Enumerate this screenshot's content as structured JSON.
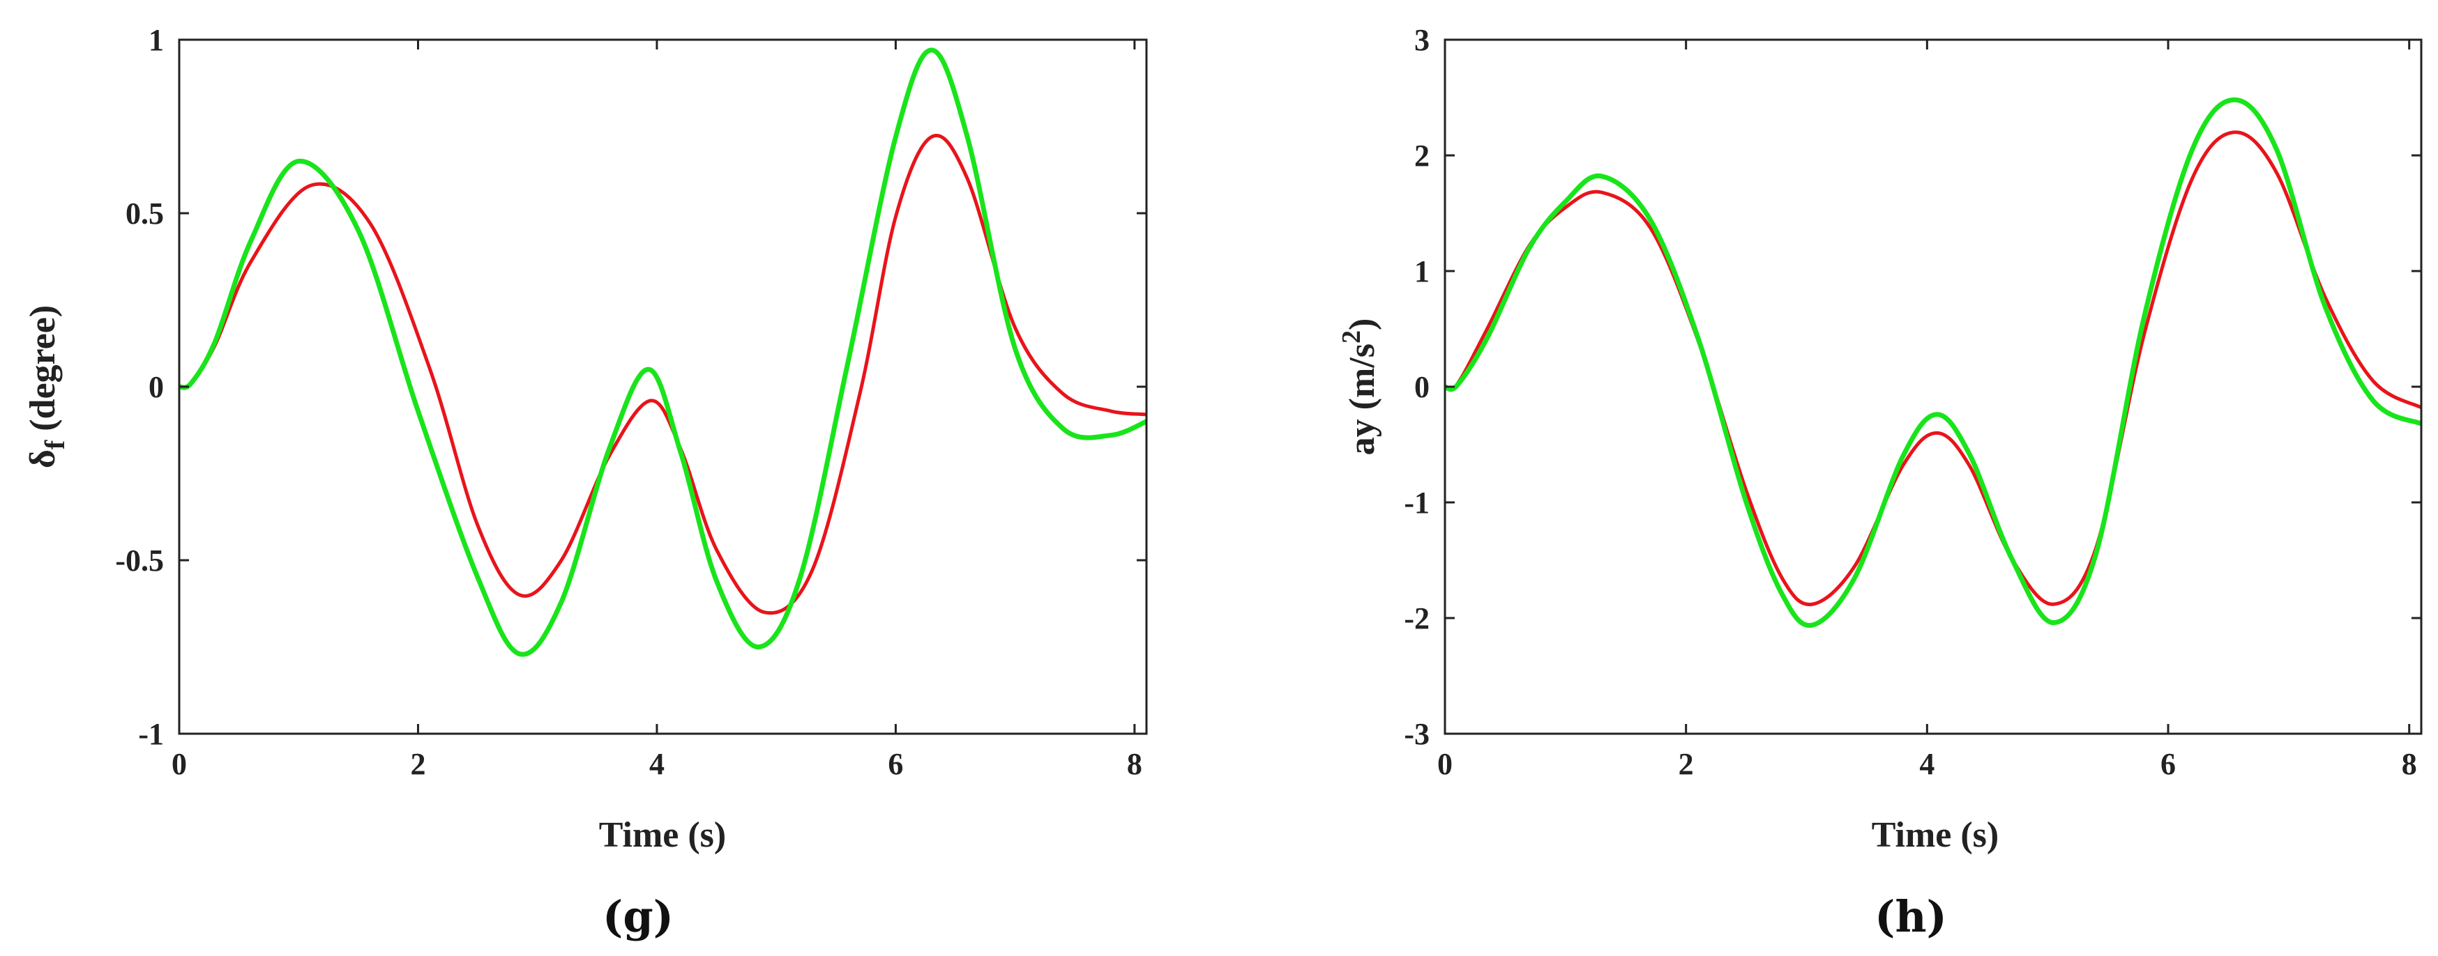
{
  "colors": {
    "red": "#e8141b",
    "green": "#19e41b",
    "black": "#000000"
  },
  "chart_data": [
    {
      "type": "line",
      "panel_label": "(g)",
      "xlabel": "Time (s)",
      "ylabel_main": "δ",
      "ylabel_sub": "f",
      "ylabel_rest": " (degree)",
      "xlim": [
        0,
        8.1
      ],
      "ylim": [
        -1,
        1
      ],
      "xticks": [
        0,
        2,
        4,
        6,
        8
      ],
      "xtick_labels": [
        "0",
        "2",
        "4",
        "6",
        "8"
      ],
      "yticks": [
        -1,
        -0.5,
        0,
        0.5,
        1
      ],
      "ytick_labels": [
        "-1",
        "-0.5",
        "0",
        "0.5",
        "1"
      ],
      "series": [
        {
          "color": "black",
          "width": 5,
          "dashed": true,
          "x": [
            0,
            0.1,
            0.3,
            0.6,
            1.0,
            1.5,
            2.0,
            2.5,
            2.85,
            3.2,
            3.6,
            3.93,
            4.2,
            4.5,
            4.85,
            5.2,
            5.6,
            6.0,
            6.3,
            6.6,
            7.0,
            7.4,
            7.8,
            8.1
          ],
          "y": [
            0,
            0.01,
            0.13,
            0.42,
            0.65,
            0.45,
            -0.07,
            -0.55,
            -0.77,
            -0.62,
            -0.18,
            0.05,
            -0.19,
            -0.56,
            -0.75,
            -0.55,
            0.07,
            0.72,
            0.97,
            0.72,
            0.11,
            -0.12,
            -0.14,
            -0.1
          ]
        },
        {
          "color": "red",
          "width": 5,
          "dashed": false,
          "x": [
            0,
            0.1,
            0.3,
            0.6,
            1.1,
            1.6,
            2.1,
            2.5,
            2.85,
            3.2,
            3.6,
            3.95,
            4.2,
            4.5,
            4.9,
            5.3,
            5.7,
            6.0,
            6.3,
            6.6,
            7.0,
            7.4,
            7.8,
            8.1
          ],
          "y": [
            0,
            0.01,
            0.12,
            0.36,
            0.58,
            0.47,
            0.05,
            -0.4,
            -0.6,
            -0.5,
            -0.2,
            -0.04,
            -0.18,
            -0.47,
            -0.65,
            -0.53,
            -0.02,
            0.49,
            0.72,
            0.6,
            0.17,
            -0.02,
            -0.07,
            -0.08
          ]
        },
        {
          "color": "green",
          "width": 7,
          "dashed": false,
          "x": [
            0,
            0.1,
            0.3,
            0.6,
            1.0,
            1.5,
            2.0,
            2.5,
            2.85,
            3.2,
            3.6,
            3.93,
            4.2,
            4.5,
            4.85,
            5.2,
            5.6,
            6.0,
            6.3,
            6.6,
            7.0,
            7.4,
            7.8,
            8.1
          ],
          "y": [
            0,
            0.01,
            0.13,
            0.42,
            0.65,
            0.45,
            -0.07,
            -0.55,
            -0.77,
            -0.62,
            -0.18,
            0.05,
            -0.19,
            -0.56,
            -0.75,
            -0.55,
            0.07,
            0.72,
            0.97,
            0.72,
            0.11,
            -0.12,
            -0.14,
            -0.1
          ]
        }
      ]
    },
    {
      "type": "line",
      "panel_label": "(h)",
      "xlabel": "Time (s)",
      "ylabel_main": "ay (m/s",
      "ylabel_sup": "2",
      "ylabel_rest": ")",
      "xlim": [
        0,
        8.1
      ],
      "ylim": [
        -3,
        3
      ],
      "xticks": [
        0,
        2,
        4,
        6,
        8
      ],
      "xtick_labels": [
        "0",
        "2",
        "4",
        "6",
        "8"
      ],
      "yticks": [
        -3,
        -2,
        -1,
        0,
        1,
        2,
        3
      ],
      "ytick_labels": [
        "-3",
        "-2",
        "-1",
        "0",
        "1",
        "2",
        "3"
      ],
      "series": [
        {
          "color": "black",
          "width": 5,
          "dashed": true,
          "x": [
            0,
            0.1,
            0.35,
            0.7,
            1.0,
            1.3,
            1.7,
            2.1,
            2.5,
            2.8,
            3.05,
            3.4,
            3.8,
            4.08,
            4.35,
            4.7,
            5.05,
            5.4,
            5.8,
            6.2,
            6.55,
            6.9,
            7.3,
            7.7,
            8.1
          ],
          "y": [
            0,
            0.01,
            0.42,
            1.2,
            1.6,
            1.82,
            1.45,
            0.42,
            -1.0,
            -1.8,
            -2.06,
            -1.65,
            -0.6,
            -0.24,
            -0.58,
            -1.48,
            -2.04,
            -1.45,
            0.6,
            2.05,
            2.48,
            2.05,
            0.7,
            -0.12,
            -0.32
          ]
        },
        {
          "color": "red",
          "width": 5,
          "dashed": false,
          "x": [
            0,
            0.1,
            0.35,
            0.7,
            1.0,
            1.3,
            1.7,
            2.1,
            2.5,
            2.8,
            3.05,
            3.4,
            3.8,
            4.08,
            4.35,
            4.7,
            5.05,
            5.4,
            5.8,
            6.2,
            6.55,
            6.9,
            7.3,
            7.7,
            8.1
          ],
          "y": [
            0,
            0.02,
            0.5,
            1.22,
            1.55,
            1.68,
            1.38,
            0.4,
            -0.9,
            -1.66,
            -1.88,
            -1.55,
            -0.68,
            -0.4,
            -0.68,
            -1.48,
            -1.88,
            -1.4,
            0.45,
            1.8,
            2.2,
            1.85,
            0.78,
            0.05,
            -0.18
          ]
        },
        {
          "color": "green",
          "width": 7,
          "dashed": false,
          "x": [
            0,
            0.1,
            0.35,
            0.7,
            1.0,
            1.3,
            1.7,
            2.1,
            2.5,
            2.8,
            3.05,
            3.4,
            3.8,
            4.08,
            4.35,
            4.7,
            5.05,
            5.4,
            5.8,
            6.2,
            6.55,
            6.9,
            7.3,
            7.7,
            8.1
          ],
          "y": [
            0,
            0.01,
            0.42,
            1.2,
            1.6,
            1.82,
            1.45,
            0.42,
            -1.0,
            -1.8,
            -2.06,
            -1.65,
            -0.6,
            -0.24,
            -0.58,
            -1.48,
            -2.04,
            -1.45,
            0.6,
            2.05,
            2.48,
            2.05,
            0.7,
            -0.12,
            -0.32
          ]
        }
      ]
    }
  ]
}
